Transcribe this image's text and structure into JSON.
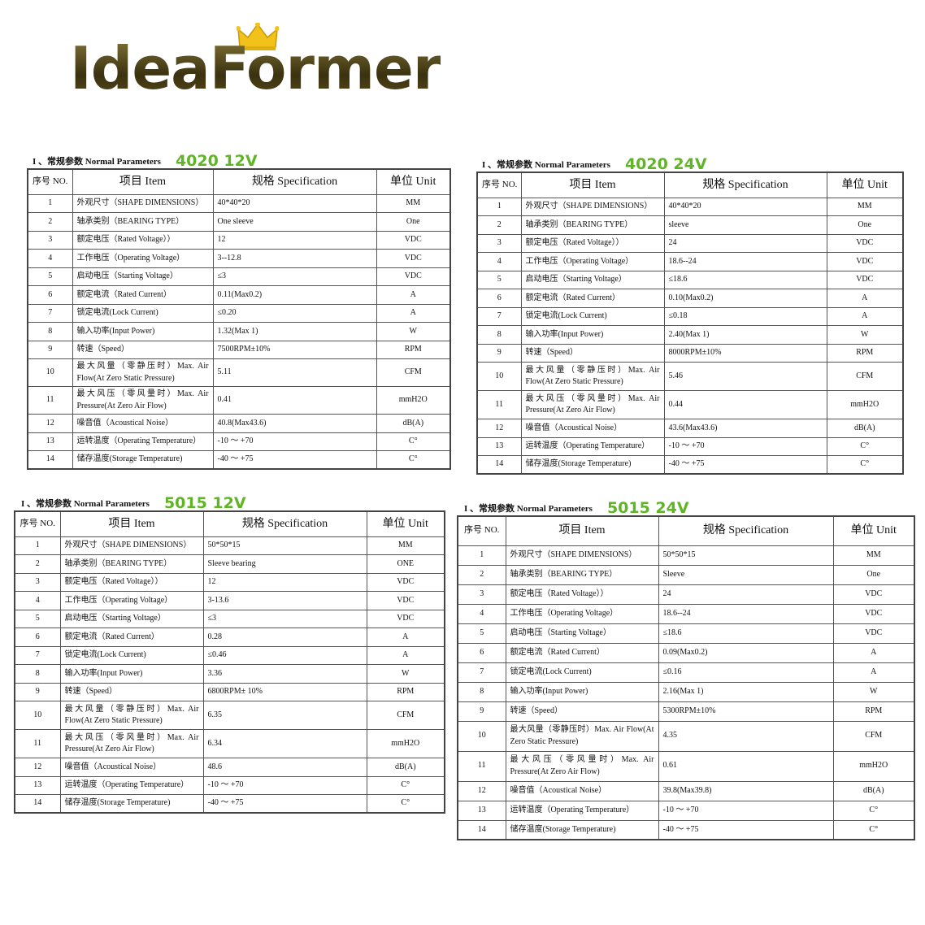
{
  "logo": {
    "text": "IdeaFormer",
    "crown_color": "#f2c21a"
  },
  "accent_color": "#5fb526",
  "headers": {
    "no": "序号 NO.",
    "item": "项目 Item",
    "spec": "规格 Specification",
    "unit": "单位 Unit"
  },
  "section_title": "I 、常规参数 Normal Parameters",
  "items": [
    "外观尺寸（SHAPE DIMENSIONS）",
    "轴承类别（BEARING TYPE）",
    "额定电压（Rated Voltage））",
    "工作电压（Operating Voltage）",
    "启动电压（Starting Voltage）",
    "额定电流（Rated Current）",
    "锁定电流(Lock Current)",
    "输入功率(Input Power)",
    "转速（Speed）",
    "最大风量（零静压时）Max. Air Flow(At Zero Static Pressure)",
    "最大风压（零风量时）Max. Air Pressure(At Zero Air Flow)",
    "噪音值（Acoustical Noise）",
    "运转温度（Operating Temperature）",
    "储存温度(Storage Temperature)"
  ],
  "tables": [
    {
      "label": "4020 12V",
      "rows": [
        {
          "no": "1",
          "spec": "40*40*20",
          "unit": "MM"
        },
        {
          "no": "2",
          "spec": "One sleeve",
          "unit": "One"
        },
        {
          "no": "3",
          "spec": "12",
          "unit": "VDC"
        },
        {
          "no": "4",
          "spec": "3--12.8",
          "unit": "VDC"
        },
        {
          "no": "5",
          "spec": "≤3",
          "unit": "VDC"
        },
        {
          "no": "6",
          "spec": "0.11(Max0.2)",
          "unit": "A"
        },
        {
          "no": "7",
          "spec": "≤0.20",
          "unit": "A"
        },
        {
          "no": "8",
          "spec": "1.32(Max 1)",
          "unit": "W"
        },
        {
          "no": "9",
          "spec": "7500RPM±10%",
          "unit": "RPM"
        },
        {
          "no": "10",
          "spec": "5.11",
          "unit": "CFM"
        },
        {
          "no": "11",
          "spec": "0.41",
          "unit": "mmH2O"
        },
        {
          "no": "12",
          "spec": "40.8(Max43.6)",
          "unit": "dB(A)"
        },
        {
          "no": "13",
          "spec": "-10 ～ +70",
          "unit": "C°"
        },
        {
          "no": "14",
          "spec": "-40 ～ +75",
          "unit": "C°"
        }
      ]
    },
    {
      "label": "4020 24V",
      "rows": [
        {
          "no": "1",
          "spec": "40*40*20",
          "unit": "MM"
        },
        {
          "no": "2",
          "spec": "sleeve",
          "unit": "One"
        },
        {
          "no": "3",
          "spec": "24",
          "unit": "VDC"
        },
        {
          "no": "4",
          "spec": "18.6--24",
          "unit": "VDC"
        },
        {
          "no": "5",
          "spec": "≤18.6",
          "unit": "VDC"
        },
        {
          "no": "6",
          "spec": "0.10(Max0.2)",
          "unit": "A"
        },
        {
          "no": "7",
          "spec": "≤0.18",
          "unit": "A"
        },
        {
          "no": "8",
          "spec": "2.40(Max 1)",
          "unit": "W"
        },
        {
          "no": "9",
          "spec": "8000RPM±10%",
          "unit": "RPM"
        },
        {
          "no": "10",
          "spec": "5.46",
          "unit": "CFM"
        },
        {
          "no": "11",
          "spec": "0.44",
          "unit": "mmH2O"
        },
        {
          "no": "12",
          "spec": "43.6(Max43.6)",
          "unit": "dB(A)"
        },
        {
          "no": "13",
          "spec": "-10 ～ +70",
          "unit": "C°"
        },
        {
          "no": "14",
          "spec": "-40 ～ +75",
          "unit": "C°"
        }
      ]
    },
    {
      "label": "5015 12V",
      "rows": [
        {
          "no": "1",
          "spec": "50*50*15",
          "unit": "MM"
        },
        {
          "no": "2",
          "spec": "Sleeve bearing",
          "unit": "ONE"
        },
        {
          "no": "3",
          "spec": "12",
          "unit": "VDC"
        },
        {
          "no": "4",
          "spec": "3-13.6",
          "unit": "VDC"
        },
        {
          "no": "5",
          "spec": "≤3",
          "unit": "VDC"
        },
        {
          "no": "6",
          "spec": "0.28",
          "unit": "A"
        },
        {
          "no": "7",
          "spec": "≤0.46",
          "unit": "A"
        },
        {
          "no": "8",
          "spec": "3.36",
          "unit": "W"
        },
        {
          "no": "9",
          "spec": "6800RPM± 10%",
          "unit": "RPM"
        },
        {
          "no": "10",
          "spec": "6.35",
          "unit": "CFM"
        },
        {
          "no": "11",
          "spec": "6.34",
          "unit": "mmH2O"
        },
        {
          "no": "12",
          "spec": "48.6",
          "unit": "dB(A)"
        },
        {
          "no": "13",
          "spec": "-10 ～ +70",
          "unit": "C°"
        },
        {
          "no": "14",
          "spec": "-40 ～ +75",
          "unit": "C°"
        }
      ]
    },
    {
      "label": "5015 24V",
      "rows": [
        {
          "no": "1",
          "spec": "50*50*15",
          "unit": "MM"
        },
        {
          "no": "2",
          "spec": "Sleeve",
          "unit": "One"
        },
        {
          "no": "3",
          "spec": "24",
          "unit": "VDC"
        },
        {
          "no": "4",
          "spec": "18.6--24",
          "unit": "VDC"
        },
        {
          "no": "5",
          "spec": "≤18.6",
          "unit": "VDC"
        },
        {
          "no": "6",
          "spec": "0.09(Max0.2)",
          "unit": "A"
        },
        {
          "no": "7",
          "spec": "≤0.16",
          "unit": "A"
        },
        {
          "no": "8",
          "spec": "2.16(Max 1)",
          "unit": "W"
        },
        {
          "no": "9",
          "spec": "5300RPM±10%",
          "unit": "RPM"
        },
        {
          "no": "10",
          "spec": "4.35",
          "unit": "CFM"
        },
        {
          "no": "11",
          "spec": "0.61",
          "unit": "mmH2O"
        },
        {
          "no": "12",
          "spec": "39.8(Max39.8)",
          "unit": "dB(A)"
        },
        {
          "no": "13",
          "spec": "-10 ～ +70",
          "unit": "C°"
        },
        {
          "no": "14",
          "spec": "-40 ～ +75",
          "unit": "C°"
        }
      ]
    }
  ]
}
